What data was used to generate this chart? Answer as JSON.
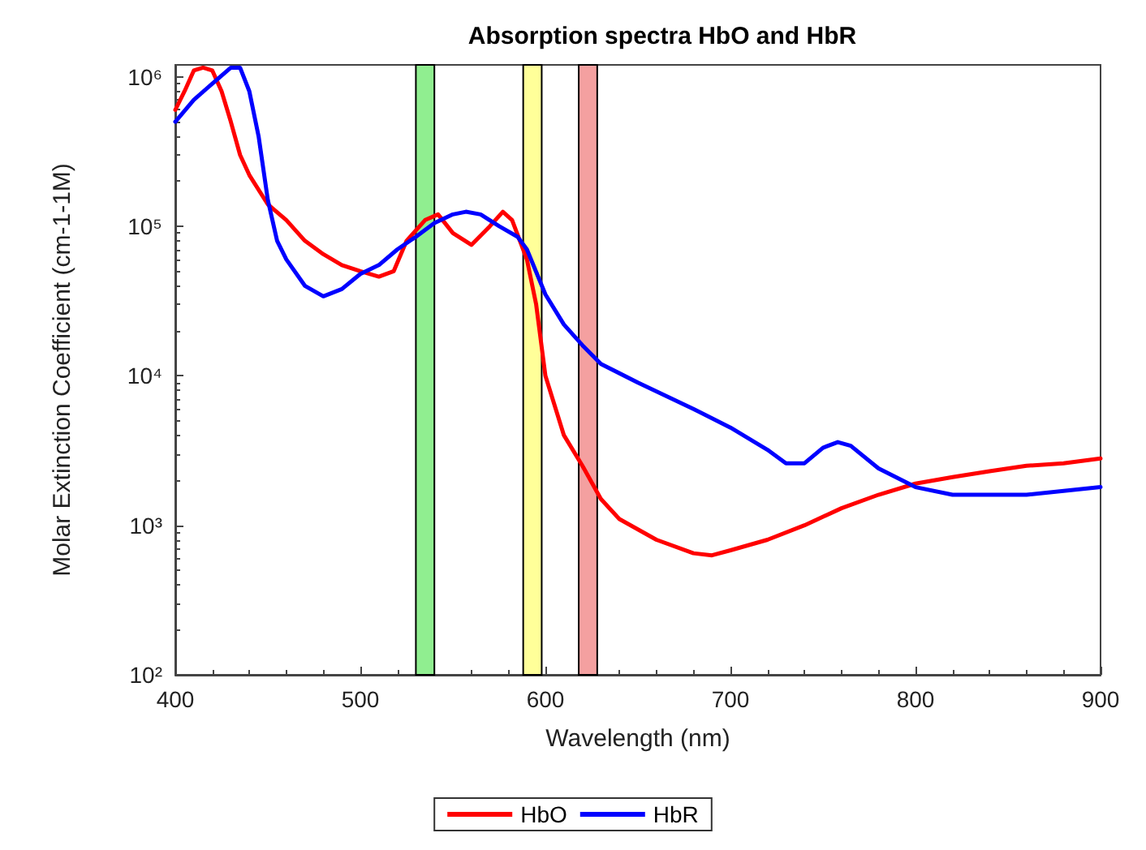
{
  "chart_data": {
    "type": "line",
    "title": "Absorption spectra HbO and HbR",
    "xlabel": "Wavelength (nm)",
    "ylabel": "Molar Extinction Coefficient (cm-1-1M)",
    "log": "y",
    "grid": false,
    "legend": "bottom",
    "line_style": "solid",
    "marker": "none",
    "xlim": [
      400,
      900
    ],
    "xticks": [
      400,
      500,
      600,
      700,
      800,
      900
    ],
    "ylim": [
      100,
      1200000
    ],
    "yticks": [
      {
        "value": 100,
        "label": "10²"
      },
      {
        "value": 1000,
        "label": "10³"
      },
      {
        "value": 10000,
        "label": "10⁴"
      },
      {
        "value": 100000,
        "label": "10⁵"
      },
      {
        "value": 1000000,
        "label": "10⁶"
      }
    ],
    "bands": [
      {
        "axis": "x",
        "from": 530,
        "to": 540,
        "label": null,
        "color": "#90ee90"
      },
      {
        "axis": "x",
        "from": 588,
        "to": 598,
        "label": null,
        "color": "#ffff99"
      },
      {
        "axis": "x",
        "from": 618,
        "to": 628,
        "label": null,
        "color": "#f4a0a0"
      }
    ],
    "series": [
      {
        "name": "HbO",
        "color": "#ff0000",
        "x": [
          400,
          405,
          410,
          415,
          420,
          425,
          430,
          435,
          440,
          450,
          460,
          470,
          480,
          490,
          500,
          510,
          518,
          525,
          535,
          542,
          550,
          560,
          570,
          577,
          582,
          590,
          595,
          600,
          610,
          620,
          630,
          640,
          660,
          680,
          690,
          700,
          720,
          740,
          760,
          780,
          800,
          820,
          840,
          860,
          880,
          900
        ],
        "values": [
          600000,
          800000,
          1100000,
          1150000,
          1100000,
          800000,
          500000,
          300000,
          220000,
          140000,
          110000,
          80000,
          65000,
          55000,
          50000,
          46000,
          50000,
          80000,
          110000,
          120000,
          90000,
          75000,
          100000,
          125000,
          110000,
          60000,
          30000,
          10000,
          4000,
          2500,
          1500,
          1100,
          800,
          650,
          630,
          680,
          800,
          1000,
          1300,
          1600,
          1900,
          2100,
          2300,
          2500,
          2600,
          2800
        ]
      },
      {
        "name": "HbR",
        "color": "#0000ff",
        "x": [
          400,
          410,
          420,
          430,
          435,
          440,
          445,
          450,
          455,
          460,
          470,
          480,
          490,
          500,
          510,
          520,
          530,
          540,
          550,
          557,
          565,
          575,
          585,
          590,
          600,
          610,
          620,
          630,
          650,
          680,
          700,
          720,
          730,
          740,
          750,
          758,
          765,
          780,
          800,
          820,
          860,
          900
        ],
        "values": [
          500000,
          700000,
          900000,
          1150000,
          1150000,
          800000,
          400000,
          150000,
          80000,
          60000,
          40000,
          34000,
          38000,
          48000,
          55000,
          70000,
          85000,
          105000,
          120000,
          125000,
          120000,
          100000,
          85000,
          70000,
          35000,
          22000,
          16000,
          12000,
          9000,
          6000,
          4500,
          3200,
          2600,
          2600,
          3300,
          3600,
          3400,
          2400,
          1800,
          1600,
          1600,
          1800
        ]
      }
    ]
  }
}
